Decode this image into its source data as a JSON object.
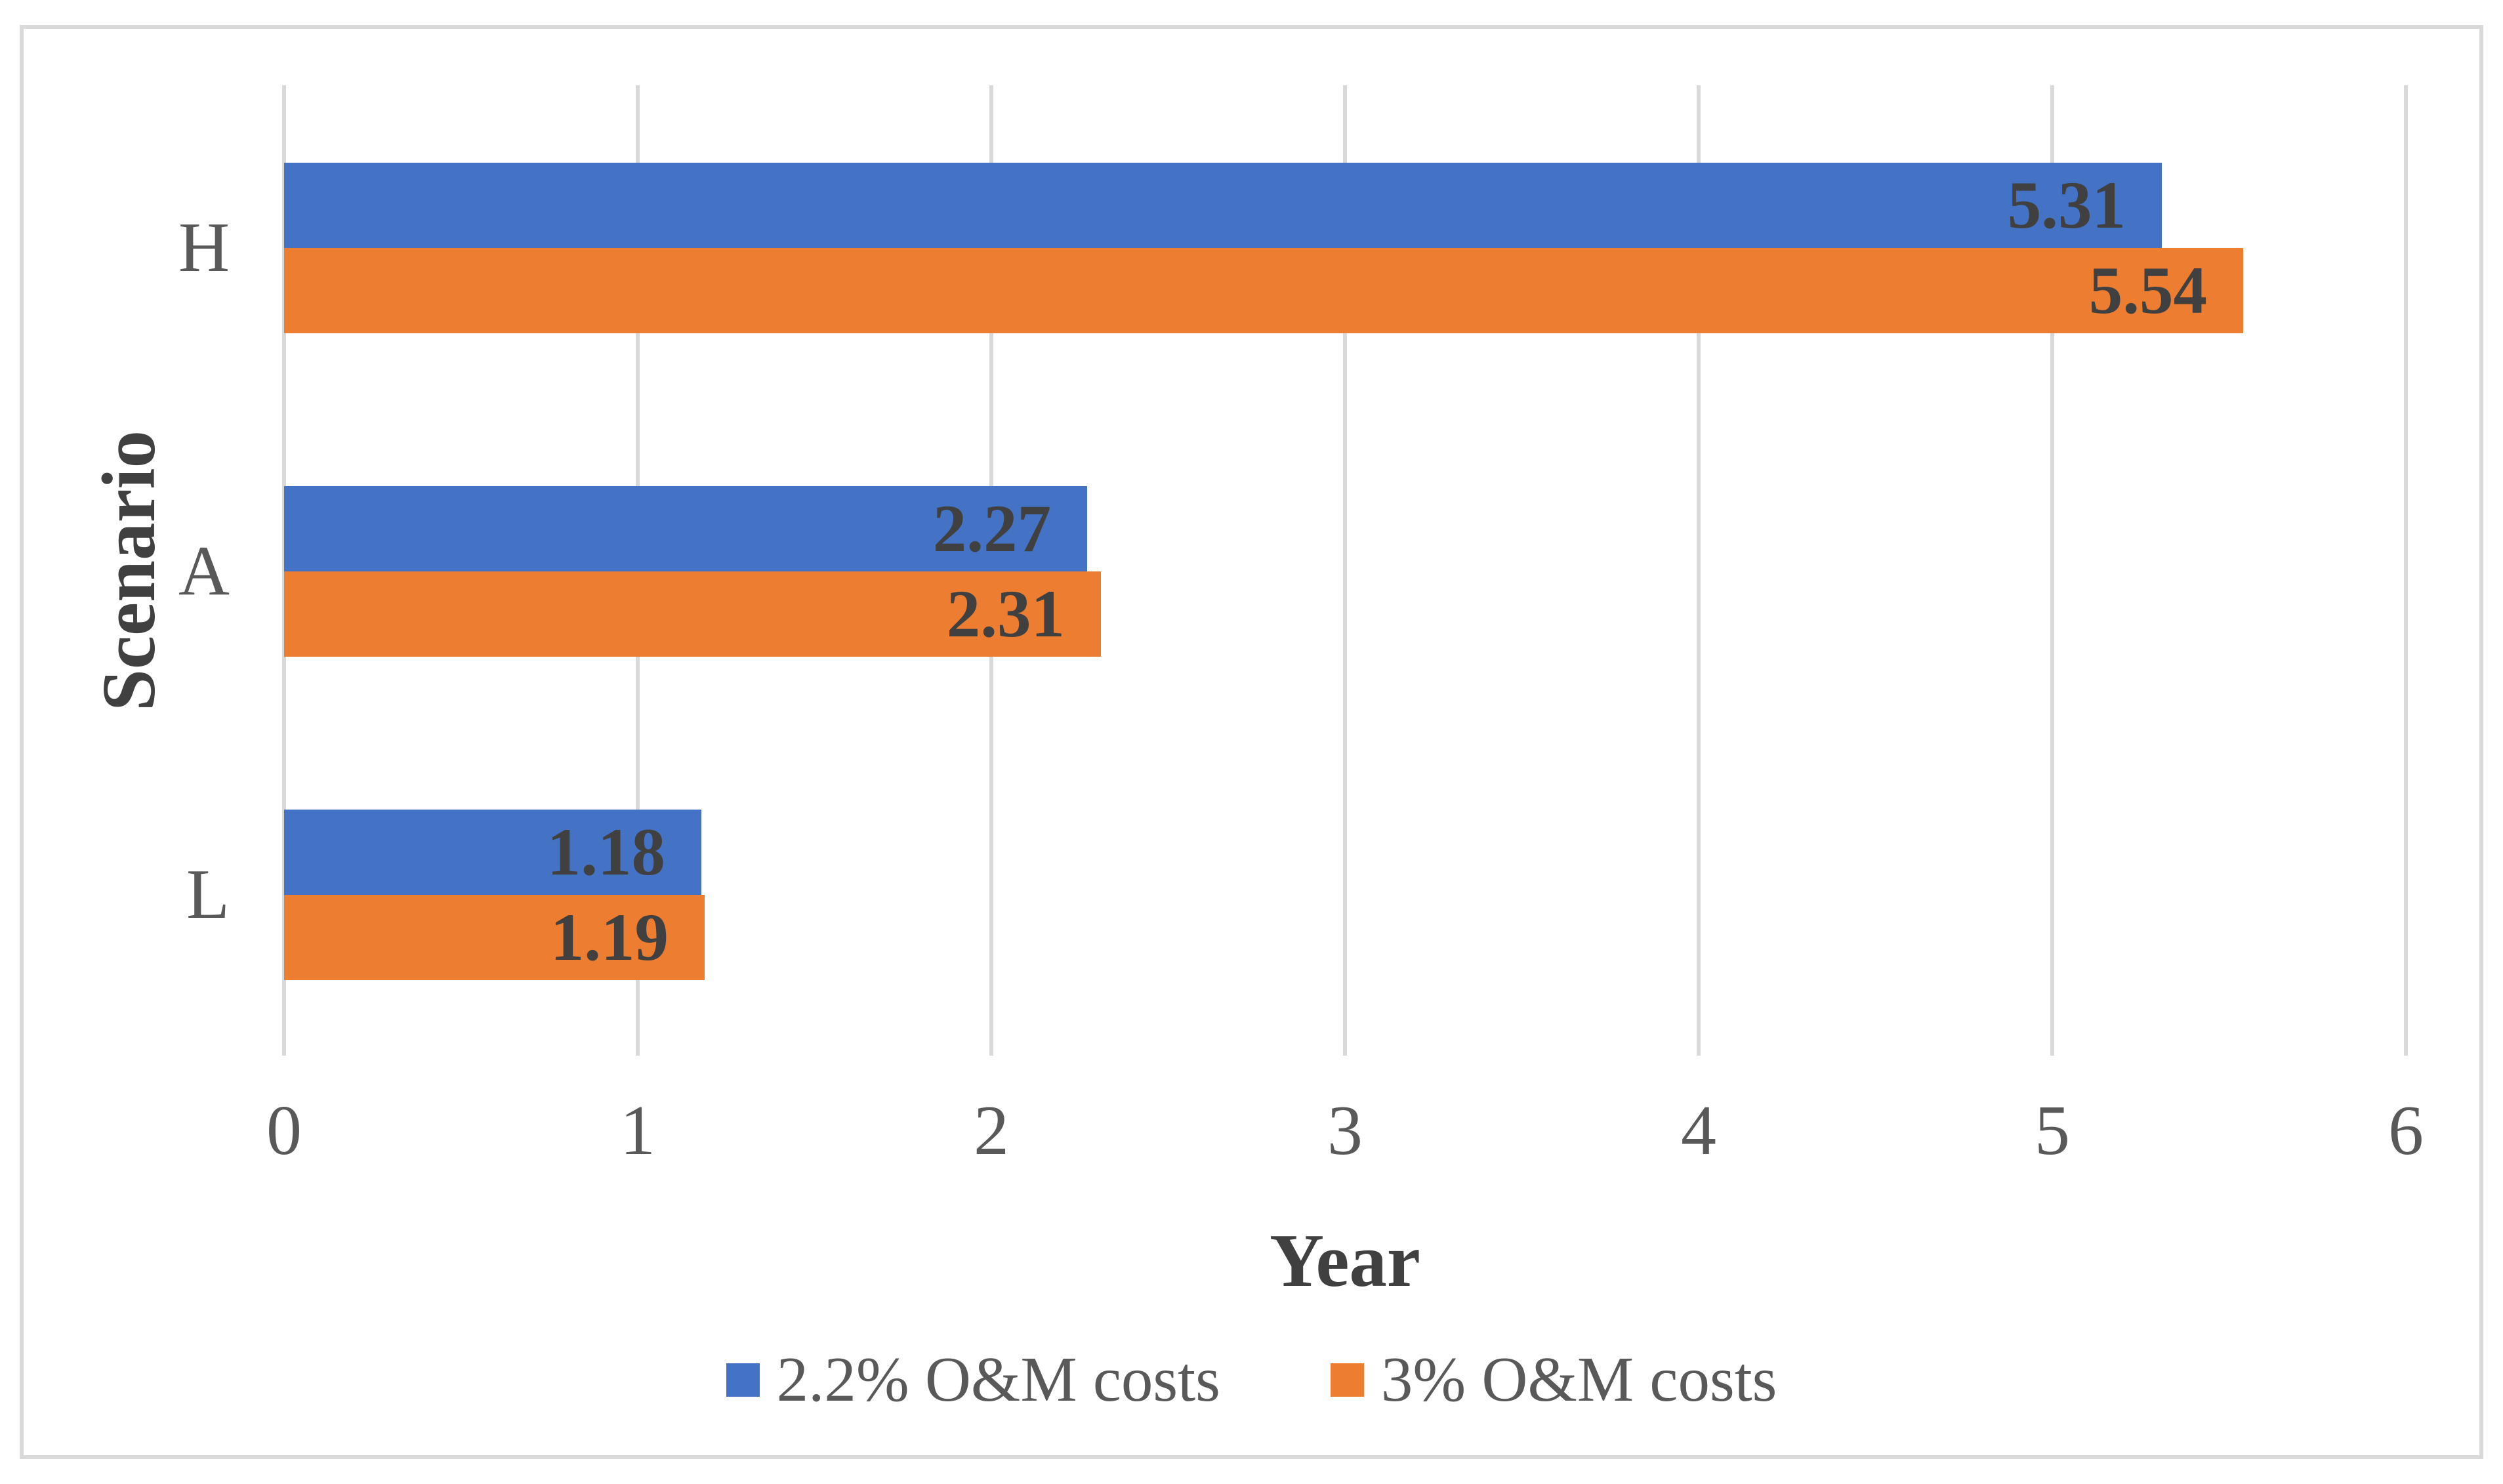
{
  "chart_data": {
    "type": "bar",
    "orientation": "horizontal",
    "title": "",
    "categories": [
      "H",
      "A",
      "L"
    ],
    "series": [
      {
        "name": "2.2% O&M costs",
        "color": "#4472C4",
        "values": [
          5.31,
          2.27,
          1.18
        ],
        "labels": [
          "5.31",
          "2.27",
          "1.18"
        ]
      },
      {
        "name": "3% O&M costs",
        "color": "#ED7D31",
        "values": [
          5.54,
          2.31,
          1.19
        ],
        "labels": [
          "5.54",
          "2.31",
          "1.19"
        ]
      }
    ],
    "xlabel": "Year",
    "ylabel": "Scenario",
    "xlim": [
      0,
      6
    ],
    "xticks": [
      "0",
      "1",
      "2",
      "3",
      "4",
      "5",
      "6"
    ],
    "grid": "vertical-gridlines-on",
    "legend_position": "bottom-center",
    "colors": {
      "gridline": "#D9D9D9",
      "frame_border": "#D9D9D9",
      "tick_text": "#595959",
      "category_text": "#595959",
      "legend_text": "#595959",
      "axis_title_text": "#404040",
      "data_label_text": "#404040",
      "background": "#ffffff"
    }
  }
}
